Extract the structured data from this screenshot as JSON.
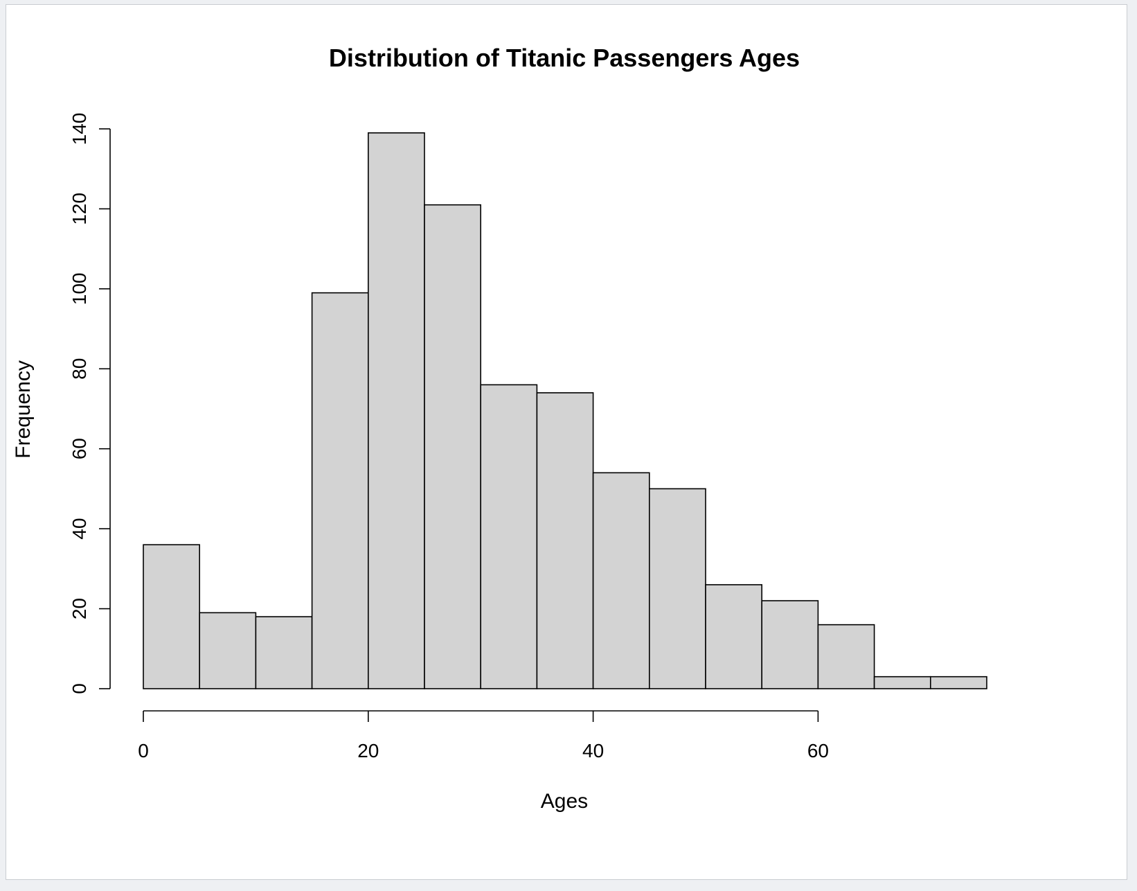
{
  "chart_data": {
    "type": "bar",
    "subtype": "histogram",
    "title": "Distribution of Titanic Passengers Ages",
    "xlabel": "Ages",
    "ylabel": "Frequency",
    "bin_width": 5,
    "bins": [
      {
        "start": 0,
        "end": 5,
        "count": 36
      },
      {
        "start": 5,
        "end": 10,
        "count": 19
      },
      {
        "start": 10,
        "end": 15,
        "count": 18
      },
      {
        "start": 15,
        "end": 20,
        "count": 99
      },
      {
        "start": 20,
        "end": 25,
        "count": 139
      },
      {
        "start": 25,
        "end": 30,
        "count": 121
      },
      {
        "start": 30,
        "end": 35,
        "count": 76
      },
      {
        "start": 35,
        "end": 40,
        "count": 74
      },
      {
        "start": 40,
        "end": 45,
        "count": 54
      },
      {
        "start": 45,
        "end": 50,
        "count": 50
      },
      {
        "start": 50,
        "end": 55,
        "count": 26
      },
      {
        "start": 55,
        "end": 60,
        "count": 22
      },
      {
        "start": 60,
        "end": 65,
        "count": 16
      },
      {
        "start": 65,
        "end": 70,
        "count": 3
      },
      {
        "start": 70,
        "end": 75,
        "count": 3
      }
    ],
    "xlim": [
      0,
      75
    ],
    "ylim": [
      0,
      140
    ],
    "x_ticks": [
      "0",
      "20",
      "40",
      "60"
    ],
    "x_tick_values": [
      0,
      20,
      40,
      60
    ],
    "y_ticks": [
      "0",
      "20",
      "40",
      "60",
      "80",
      "100",
      "120",
      "140"
    ],
    "y_tick_values": [
      0,
      20,
      40,
      60,
      80,
      100,
      120,
      140
    ],
    "bar_color": "#d3d3d3",
    "edge_color": "#000000",
    "grid": false,
    "legend": "none"
  }
}
